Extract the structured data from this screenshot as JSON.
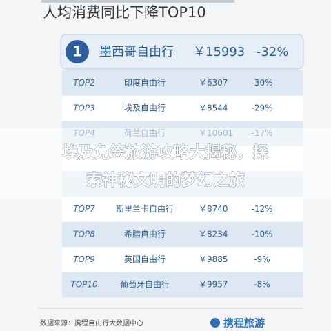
{
  "header": {
    "title": "人均消费同比下降TOP10"
  },
  "top1": {
    "rank": "1",
    "name": "墨西哥自由行",
    "price": "￥15993",
    "change": "-32%"
  },
  "table": {
    "rows": [
      [
        "TOP2",
        "印度自由行",
        "￥6307",
        "-30%"
      ],
      [
        "TOP3",
        "埃及自由行",
        "￥8544",
        "-29%"
      ],
      [
        "TOP4",
        "荷兰自由行",
        "￥10601",
        "-17%"
      ],
      [
        "TOP7",
        "斯里兰卡自由行",
        "￥8740",
        "-12%"
      ],
      [
        "TOP8",
        "希腊自由行",
        "￥8234",
        "-10%"
      ],
      [
        "TOP9",
        "英国自由行",
        "￥9885",
        "-9%"
      ],
      [
        "TOP10",
        "葡萄牙自由行",
        "￥9957",
        "-8%"
      ]
    ]
  },
  "footer": {
    "source": "数据来源：携程自由行大数据中心",
    "logo": "携程旅游"
  },
  "overlay": {
    "lines": [
      "埃及免签旅游攻略大揭秘，探",
      "索神秘文明的梦幻之旅"
    ]
  }
}
